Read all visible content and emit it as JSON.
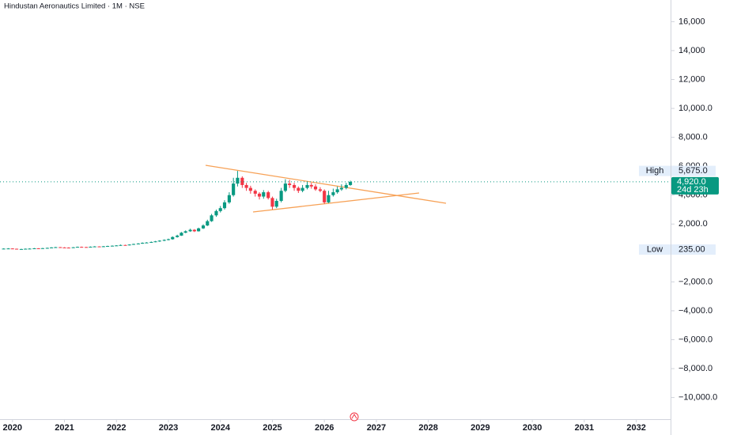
{
  "chart_data": {
    "type": "candlestick",
    "title": "Hindustan Aeronautics Limited · 1M · NSE",
    "up_color": "#089981",
    "down_color": "#f23645",
    "xlim": [
      2019.76,
      2032.66
    ],
    "xticks": [
      2020,
      2021,
      2022,
      2023,
      2024,
      2025,
      2026,
      2027,
      2028,
      2029,
      2030,
      2031,
      2032
    ],
    "ylim": [
      -11500,
      17500
    ],
    "yticks": [
      {
        "value": 16000,
        "label": "16,000"
      },
      {
        "value": 14000,
        "label": "14,000"
      },
      {
        "value": 12000,
        "label": "12,000"
      },
      {
        "value": 10000,
        "label": "10,000.0"
      },
      {
        "value": 8000,
        "label": "8,000.0"
      },
      {
        "value": 6000,
        "label": "6,000.0"
      },
      {
        "value": 4000,
        "label": "4,000.0"
      },
      {
        "value": 2000,
        "label": "2,000.0"
      },
      {
        "value": -2000,
        "label": "−2,000.0"
      },
      {
        "value": -4000,
        "label": "−4,000.0"
      },
      {
        "value": -6000,
        "label": "−6,000.0"
      },
      {
        "value": -8000,
        "label": "−8,000.0"
      },
      {
        "value": -10000,
        "label": "−10,000.0"
      }
    ],
    "x": [
      2019.83,
      2019.92,
      2020.0,
      2020.08,
      2020.17,
      2020.25,
      2020.33,
      2020.42,
      2020.5,
      2020.58,
      2020.67,
      2020.75,
      2020.83,
      2020.92,
      2021.0,
      2021.08,
      2021.17,
      2021.25,
      2021.33,
      2021.42,
      2021.5,
      2021.58,
      2021.67,
      2021.75,
      2021.83,
      2021.92,
      2022.0,
      2022.08,
      2022.17,
      2022.25,
      2022.33,
      2022.42,
      2022.5,
      2022.58,
      2022.67,
      2022.75,
      2022.83,
      2022.92,
      2023.0,
      2023.08,
      2023.17,
      2023.25,
      2023.33,
      2023.42,
      2023.5,
      2023.58,
      2023.67,
      2023.75,
      2023.83,
      2023.92,
      2024.0,
      2024.08,
      2024.17,
      2024.25,
      2024.33,
      2024.42,
      2024.5,
      2024.58,
      2024.67,
      2024.75,
      2024.83,
      2024.92,
      2025.0,
      2025.08,
      2025.17,
      2025.25,
      2025.33,
      2025.42,
      2025.5,
      2025.58,
      2025.67,
      2025.75,
      2025.83,
      2025.92,
      2026.0,
      2026.08,
      2026.17,
      2026.25,
      2026.33,
      2026.42,
      2026.5
    ],
    "open": [
      290,
      300,
      310,
      290,
      250,
      270,
      290,
      300,
      320,
      310,
      330,
      350,
      380,
      400,
      380,
      370,
      360,
      390,
      420,
      410,
      400,
      430,
      450,
      440,
      460,
      480,
      500,
      520,
      550,
      540,
      580,
      620,
      650,
      700,
      720,
      760,
      800,
      850,
      900,
      950,
      1100,
      1200,
      1400,
      1500,
      1600,
      1500,
      1700,
      1900,
      2200,
      2600,
      2900,
      3100,
      3500,
      4000,
      4800,
      5200,
      4700,
      4500,
      4300,
      4100,
      3900,
      4200,
      3800,
      3200,
      3600,
      4300,
      4800,
      4700,
      4500,
      4300,
      4500,
      4700,
      4600,
      4400,
      4300,
      3500,
      4000,
      4200,
      4400,
      4500,
      4700
    ],
    "high": [
      320,
      330,
      320,
      300,
      290,
      310,
      320,
      340,
      330,
      350,
      370,
      400,
      420,
      410,
      400,
      390,
      410,
      440,
      440,
      420,
      450,
      470,
      460,
      480,
      500,
      520,
      540,
      580,
      570,
      600,
      640,
      680,
      730,
      750,
      790,
      830,
      880,
      940,
      990,
      1150,
      1260,
      1450,
      1560,
      1680,
      1650,
      1750,
      1980,
      2300,
      2700,
      3000,
      3250,
      3650,
      4200,
      5200,
      5675,
      5300,
      4850,
      4650,
      4400,
      4200,
      4350,
      4300,
      3900,
      3750,
      4500,
      5100,
      5050,
      4850,
      4600,
      4700,
      4950,
      4850,
      4750,
      4550,
      4400,
      4300,
      4450,
      4600,
      4750,
      4850,
      5000
    ],
    "low": [
      280,
      290,
      280,
      235,
      245,
      260,
      280,
      290,
      300,
      300,
      320,
      340,
      370,
      370,
      350,
      340,
      350,
      380,
      400,
      380,
      390,
      420,
      420,
      430,
      440,
      460,
      480,
      500,
      520,
      520,
      560,
      600,
      630,
      680,
      700,
      740,
      770,
      820,
      870,
      920,
      1060,
      1180,
      1370,
      1460,
      1450,
      1480,
      1660,
      1860,
      2150,
      2500,
      2800,
      3000,
      3400,
      3900,
      4600,
      4500,
      4300,
      4100,
      3900,
      3700,
      3750,
      3700,
      3000,
      3100,
      3500,
      4200,
      4500,
      4300,
      4150,
      4200,
      4400,
      4450,
      4300,
      4200,
      3400,
      3450,
      3900,
      4100,
      4300,
      4400,
      4650
    ],
    "close": [
      300,
      310,
      290,
      250,
      270,
      290,
      300,
      320,
      310,
      330,
      350,
      380,
      400,
      380,
      370,
      360,
      390,
      420,
      410,
      400,
      430,
      450,
      440,
      460,
      480,
      500,
      520,
      550,
      540,
      580,
      620,
      650,
      700,
      720,
      760,
      800,
      850,
      900,
      950,
      1100,
      1200,
      1400,
      1500,
      1600,
      1500,
      1700,
      1900,
      2200,
      2600,
      2900,
      3100,
      3500,
      4000,
      4800,
      5200,
      4700,
      4500,
      4300,
      4100,
      3900,
      4200,
      3800,
      3200,
      3600,
      4300,
      4800,
      4700,
      4500,
      4300,
      4500,
      4700,
      4600,
      4400,
      4300,
      3500,
      4000,
      4200,
      4400,
      4500,
      4700,
      4920
    ],
    "high_marker": {
      "text": "High",
      "value": 5675,
      "label": "5,675.0"
    },
    "low_marker": {
      "text": "Low",
      "value": 235,
      "label": "235.00"
    },
    "last_price": {
      "value": 4920,
      "label": "4,920.0",
      "countdown": "24d 23h"
    }
  }
}
